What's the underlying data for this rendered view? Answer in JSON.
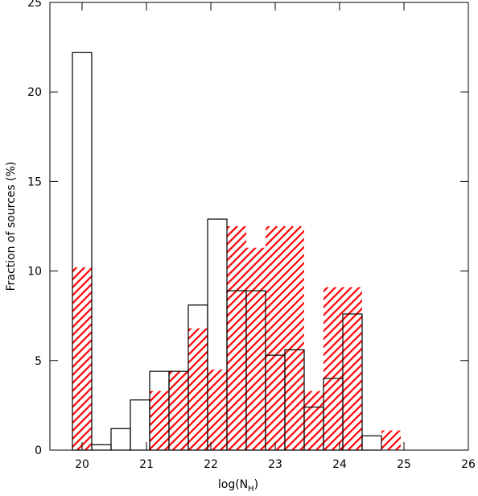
{
  "chart_data": {
    "type": "histogram",
    "xlabel": {
      "main": "log(N",
      "sub": "H",
      "end": ")"
    },
    "ylabel": "Fraction of sources (%)",
    "bins": [
      19.85,
      20.15,
      20.45,
      20.75,
      21.05,
      21.35,
      21.65,
      21.95,
      22.25,
      22.55,
      22.85,
      23.15,
      23.45,
      23.75,
      24.05,
      24.35,
      24.65,
      24.95
    ],
    "series": [
      {
        "color": "#ff0000",
        "style": "hatched",
        "values": [
          10.2,
          0,
          0,
          0,
          3.3,
          4.4,
          6.8,
          4.5,
          12.5,
          11.3,
          12.5,
          12.5,
          3.3,
          9.1,
          9.1,
          0,
          1.1
        ]
      },
      {
        "color": "#000000",
        "style": "outline",
        "values": [
          22.2,
          0.3,
          1.2,
          2.8,
          4.4,
          4.4,
          8.1,
          12.9,
          8.9,
          8.9,
          5.3,
          5.6,
          2.4,
          4.0,
          7.6,
          0.8,
          0
        ]
      }
    ],
    "xlim": [
      19.5,
      26
    ],
    "xticks": [
      20,
      21,
      22,
      23,
      24,
      25,
      26
    ],
    "ylim": [
      0,
      25
    ],
    "yticks": [
      0,
      5,
      10,
      15,
      20,
      25
    ]
  }
}
